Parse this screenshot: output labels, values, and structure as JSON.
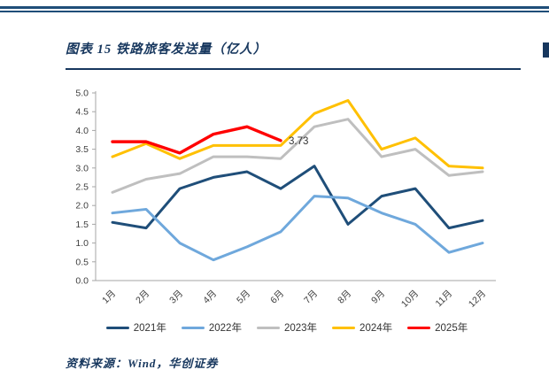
{
  "page": {
    "title": "图表 15  铁路旅客发送量（亿人）",
    "source": "资料来源：Wind，华创证券",
    "accent_color": "#17375E"
  },
  "chart_data": {
    "type": "line",
    "title": "铁路旅客发送量（亿人）",
    "categories": [
      "1月",
      "2月",
      "3月",
      "4月",
      "5月",
      "6月",
      "7月",
      "8月",
      "9月",
      "10月",
      "11月",
      "12月"
    ],
    "series": [
      {
        "name": "2021年",
        "color": "#1F4E79",
        "values": [
          1.55,
          1.4,
          2.45,
          2.75,
          2.9,
          2.45,
          3.05,
          1.5,
          2.25,
          2.45,
          1.4,
          1.6
        ]
      },
      {
        "name": "2022年",
        "color": "#6FA8DC",
        "values": [
          1.8,
          1.9,
          1.0,
          0.55,
          0.9,
          1.3,
          2.25,
          2.2,
          1.8,
          1.5,
          0.75,
          1.0
        ]
      },
      {
        "name": "2023年",
        "color": "#BFBFBF",
        "values": [
          2.35,
          2.7,
          2.85,
          3.3,
          3.3,
          3.25,
          4.1,
          4.3,
          3.3,
          3.5,
          2.8,
          2.9
        ]
      },
      {
        "name": "2024年",
        "color": "#FFC000",
        "values": [
          3.3,
          3.65,
          3.25,
          3.6,
          3.6,
          3.6,
          4.45,
          4.8,
          3.5,
          3.8,
          3.05,
          3.0
        ]
      },
      {
        "name": "2025年",
        "color": "#FF0000",
        "values": [
          3.7,
          3.7,
          3.4,
          3.9,
          4.1,
          3.73
        ]
      }
    ],
    "ylim": [
      0,
      5
    ],
    "ytick_step": 0.5,
    "yticks": [
      "0.0",
      "0.5",
      "1.0",
      "1.5",
      "2.0",
      "2.5",
      "3.0",
      "3.5",
      "4.0",
      "4.5",
      "5.0"
    ],
    "grid": false,
    "legend_position": "bottom",
    "annotation": {
      "text": "3.73",
      "series": "2025年",
      "month": "6月"
    }
  }
}
